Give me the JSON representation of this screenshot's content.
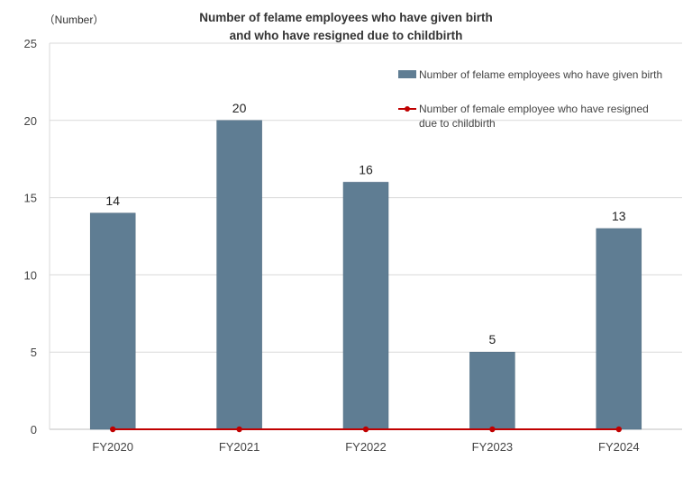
{
  "chart_data": {
    "type": "bar",
    "title_lines": [
      "Number of felame employees who have given birth",
      "and who have resigned due to childbirth"
    ],
    "ylabel": "（Number）",
    "xlabel": "",
    "categories": [
      "FY2020",
      "FY2021",
      "FY2022",
      "FY2023",
      "FY2024"
    ],
    "series": [
      {
        "name": "Number of felame employees who have given birth",
        "kind": "bar",
        "values": [
          14,
          20,
          16,
          5,
          13
        ],
        "color": "#5f7d93"
      },
      {
        "name_lines": [
          "Number of female employee who have resigned",
          "due to childbirth"
        ],
        "kind": "line",
        "values": [
          0,
          0,
          0,
          0,
          0
        ],
        "color": "#c00000"
      }
    ],
    "ylim": [
      0,
      25
    ],
    "yticks": [
      "0",
      "5",
      "10",
      "15",
      "20",
      "25"
    ],
    "grid": true,
    "legend_position": "top-right"
  }
}
